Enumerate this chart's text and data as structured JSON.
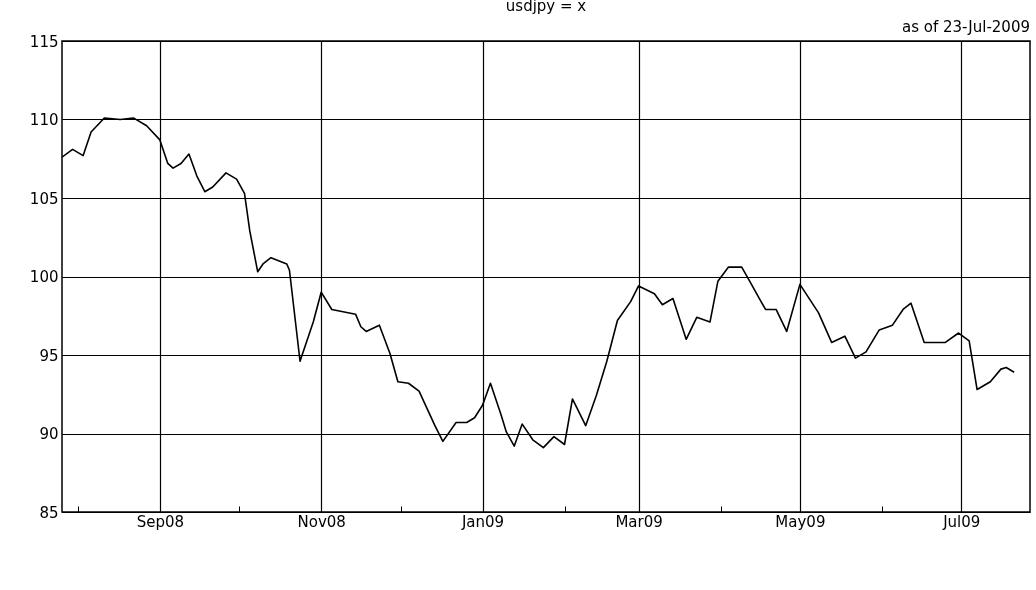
{
  "chart_data": {
    "type": "line",
    "title": "usdjpy = x",
    "annotations": [
      "as of 23-Jul-2009"
    ],
    "x": [
      "2008-07-26",
      "2008-07-30",
      "2008-08-03",
      "2008-08-06",
      "2008-08-11",
      "2008-08-17",
      "2008-08-22",
      "2008-08-27",
      "2008-09-01",
      "2008-09-04",
      "2008-09-06",
      "2008-09-09",
      "2008-09-12",
      "2008-09-15",
      "2008-09-18",
      "2008-09-21",
      "2008-09-26",
      "2008-09-30",
      "2008-10-03",
      "2008-10-05",
      "2008-10-08",
      "2008-10-10",
      "2008-10-13",
      "2008-10-19",
      "2008-10-20",
      "2008-10-24",
      "2008-10-29",
      "2008-11-01",
      "2008-11-05",
      "2008-11-14",
      "2008-11-16",
      "2008-11-18",
      "2008-11-23",
      "2008-11-27",
      "2008-11-30",
      "2008-12-04",
      "2008-12-08",
      "2008-12-14",
      "2008-12-17",
      "2008-12-22",
      "2008-12-26",
      "2008-12-29",
      "2009-01-01",
      "2009-01-04",
      "2009-01-08",
      "2009-01-10",
      "2009-01-13",
      "2009-01-16",
      "2009-01-20",
      "2009-01-24",
      "2009-01-28",
      "2009-02-01",
      "2009-02-04",
      "2009-02-09",
      "2009-02-13",
      "2009-02-17",
      "2009-02-21",
      "2009-02-26",
      "2009-03-01",
      "2009-03-07",
      "2009-03-10",
      "2009-03-14",
      "2009-03-19",
      "2009-03-23",
      "2009-03-28",
      "2009-03-31",
      "2009-04-04",
      "2009-04-09",
      "2009-04-12",
      "2009-04-18",
      "2009-04-22",
      "2009-04-26",
      "2009-05-01",
      "2009-05-08",
      "2009-05-13",
      "2009-05-18",
      "2009-05-22",
      "2009-05-26",
      "2009-05-31",
      "2009-06-05",
      "2009-06-09",
      "2009-06-12",
      "2009-06-17",
      "2009-06-25",
      "2009-06-30",
      "2009-07-04",
      "2009-07-07",
      "2009-07-12",
      "2009-07-16",
      "2009-07-18",
      "2009-07-21"
    ],
    "series": [
      {
        "color": "#000000",
        "values": [
          107.6,
          108.1,
          107.7,
          109.2,
          110.1,
          110.0,
          110.1,
          109.6,
          108.7,
          107.2,
          106.9,
          107.2,
          107.8,
          106.4,
          105.4,
          105.7,
          106.6,
          106.2,
          105.3,
          102.9,
          100.3,
          100.8,
          101.2,
          100.8,
          100.4,
          94.6,
          97.1,
          99.0,
          97.9,
          97.6,
          96.8,
          96.5,
          96.9,
          95.1,
          93.3,
          93.2,
          92.7,
          90.5,
          89.5,
          90.7,
          90.7,
          91.0,
          91.8,
          93.2,
          91.2,
          90.1,
          89.2,
          90.6,
          89.6,
          89.1,
          89.8,
          89.3,
          92.2,
          90.5,
          92.4,
          94.6,
          97.2,
          98.4,
          99.4,
          98.9,
          98.2,
          98.6,
          96.0,
          97.4,
          97.1,
          99.7,
          100.6,
          100.6,
          99.7,
          97.9,
          97.9,
          96.5,
          99.5,
          97.7,
          95.8,
          96.2,
          94.8,
          95.2,
          96.6,
          96.9,
          97.9,
          98.3,
          95.8,
          95.8,
          96.4,
          95.9,
          92.8,
          93.3,
          94.1,
          94.2,
          93.9
        ]
      }
    ],
    "xlim": [
      "2008-07-26",
      "2009-07-27"
    ],
    "xticks": [
      {
        "value": "2008-08-01",
        "label": null
      },
      {
        "value": "2008-09-01",
        "label": "Sep08"
      },
      {
        "value": "2008-10-01",
        "label": null
      },
      {
        "value": "2008-11-01",
        "label": "Nov08"
      },
      {
        "value": "2008-12-01",
        "label": null
      },
      {
        "value": "2009-01-01",
        "label": "Jan09"
      },
      {
        "value": "2009-02-01",
        "label": null
      },
      {
        "value": "2009-03-01",
        "label": "Mar09"
      },
      {
        "value": "2009-04-01",
        "label": null
      },
      {
        "value": "2009-05-01",
        "label": "May09"
      },
      {
        "value": "2009-06-01",
        "label": null
      },
      {
        "value": "2009-07-01",
        "label": "Jul09"
      }
    ],
    "ylim": [
      85,
      115
    ],
    "yticks": [
      85,
      90,
      95,
      100,
      105,
      110,
      115
    ],
    "grid": true
  }
}
